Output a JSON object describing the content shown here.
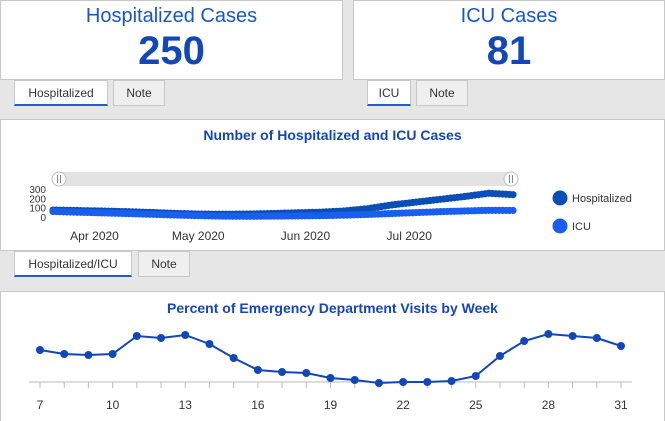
{
  "hospitalized_card": {
    "title": "Hospitalized Cases",
    "value": "250"
  },
  "icu_card": {
    "title": "ICU Cases",
    "value": "81"
  },
  "tabs_hosp": [
    {
      "label": "Hospitalized"
    },
    {
      "label": "Note"
    }
  ],
  "tabs_icu": [
    {
      "label": "ICU"
    },
    {
      "label": "Note"
    }
  ],
  "tabs_chart": [
    {
      "label": "Hospitalized/ICU"
    },
    {
      "label": "Note"
    }
  ],
  "colors": {
    "hospitalized": "#0b4fb5",
    "icu": "#1a5ef0",
    "accent": "#1346b8"
  },
  "chart_data": [
    {
      "type": "scatter",
      "title": "Number of Hospitalized and ICU Cases",
      "x_ticks": [
        "Apr 2020",
        "May 2020",
        "Jun 2020",
        "Jul 2020"
      ],
      "y_ticks": [
        0,
        100,
        200,
        300
      ],
      "ylim": [
        0,
        300
      ],
      "xlim": [
        "2020-03-20",
        "2020-07-31"
      ],
      "legend_position": "right",
      "series": [
        {
          "name": "Hospitalized",
          "x": [
            "2020-03-20",
            "2020-03-27",
            "2020-04-03",
            "2020-04-10",
            "2020-04-17",
            "2020-04-24",
            "2020-05-01",
            "2020-05-08",
            "2020-05-15",
            "2020-05-22",
            "2020-05-29",
            "2020-06-05",
            "2020-06-12",
            "2020-06-19",
            "2020-06-26",
            "2020-07-03",
            "2020-07-10",
            "2020-07-17",
            "2020-07-24",
            "2020-07-31"
          ],
          "y": [
            85,
            80,
            75,
            68,
            60,
            50,
            42,
            40,
            42,
            48,
            55,
            62,
            75,
            100,
            140,
            170,
            200,
            230,
            265,
            250
          ]
        },
        {
          "name": "ICU",
          "x": [
            "2020-03-20",
            "2020-03-27",
            "2020-04-03",
            "2020-04-10",
            "2020-04-17",
            "2020-04-24",
            "2020-05-01",
            "2020-05-08",
            "2020-05-15",
            "2020-05-22",
            "2020-05-29",
            "2020-06-05",
            "2020-06-12",
            "2020-06-19",
            "2020-06-26",
            "2020-07-03",
            "2020-07-10",
            "2020-07-17",
            "2020-07-24",
            "2020-07-31"
          ],
          "y": [
            70,
            62,
            55,
            48,
            40,
            32,
            25,
            20,
            18,
            20,
            22,
            25,
            30,
            38,
            48,
            58,
            68,
            75,
            82,
            81
          ]
        }
      ]
    },
    {
      "type": "line",
      "title": "Percent of Emergency Department Visits by Week",
      "x_ticks": [
        7,
        10,
        13,
        16,
        19,
        22,
        25,
        28,
        31
      ],
      "x": [
        7,
        8,
        9,
        10,
        11,
        12,
        13,
        14,
        15,
        16,
        17,
        18,
        19,
        20,
        21,
        22,
        23,
        24,
        25,
        26,
        27,
        28,
        29,
        30,
        31
      ],
      "y": [
        5.6,
        5.4,
        5.35,
        5.4,
        6.3,
        6.2,
        6.35,
        5.9,
        5.2,
        4.6,
        4.5,
        4.45,
        4.2,
        4.1,
        3.95,
        4.0,
        4.0,
        4.05,
        4.3,
        5.3,
        6.05,
        6.4,
        6.3,
        6.2,
        5.8
      ],
      "ylim": [
        3,
        8
      ]
    }
  ]
}
